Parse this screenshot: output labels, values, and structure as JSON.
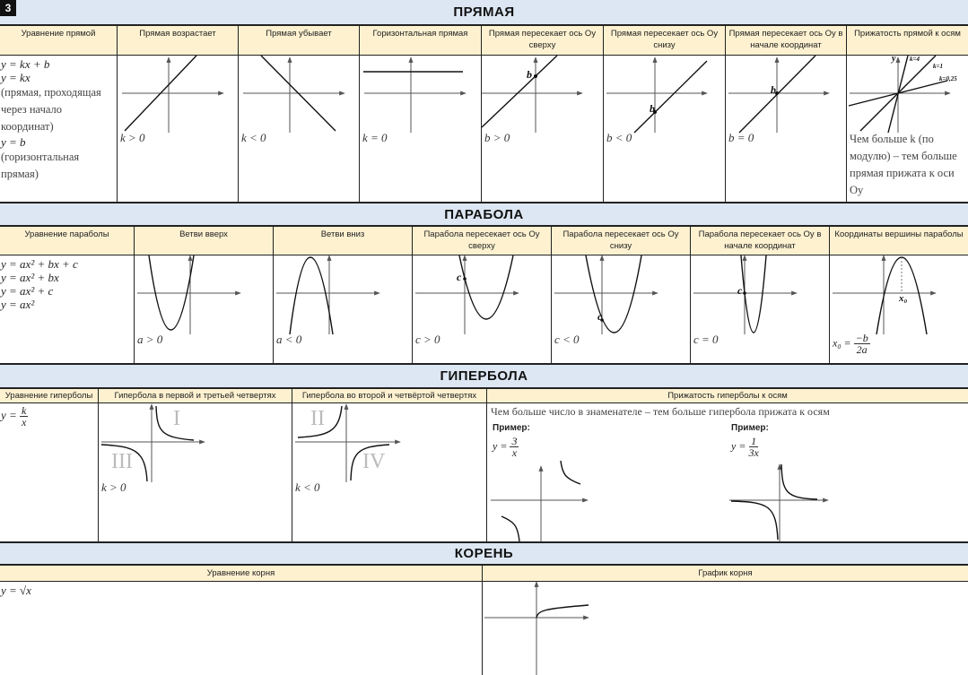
{
  "page_number": "3",
  "line": {
    "title": "ПРЯМАЯ",
    "headers": [
      "Уравнение прямой",
      "Прямая возрастает",
      "Прямая убывает",
      "Горизонтальная прямая",
      "Прямая пересекает ось Oy сверху",
      "Прямая пересекает ось Oy снизу",
      "Прямая пересекает ось Oy в начале координат",
      "Прижатость прямой к осям"
    ],
    "equations": [
      "y = kx + b",
      "y = kx",
      "(прямая, проходящая",
      "через начало",
      "координат)",
      "y = b",
      "(горизонтальная",
      "прямая)"
    ],
    "captions": [
      "k > 0",
      "k < 0",
      "k = 0",
      "b > 0",
      "b < 0",
      "b = 0"
    ],
    "point_label": "b",
    "slope_labels": [
      "y",
      "k=4",
      "k=1",
      "k=0,25"
    ],
    "steepness_note": "Чем больше k (по модулю) – тем больше прямая прижата к оси Oy"
  },
  "parabola": {
    "title": "ПАРАБОЛА",
    "headers": [
      "Уравнение параболы",
      "Ветви вверх",
      "Ветви вниз",
      "Парабола пересекает ось Oy сверху",
      "Парабола пересекает ось Oy снизу",
      "Парабола пересекает ось Oy в начале координат",
      "Координаты вершины параболы"
    ],
    "equations": [
      "y = ax² + bx + c",
      "y = ax² + bx",
      "y = ax² + c",
      "y = ax²"
    ],
    "captions": [
      "a > 0",
      "a < 0",
      "c > 0",
      "c < 0",
      "c = 0"
    ],
    "point_label": "c",
    "vertex_label": "x₀",
    "vertex_formula": {
      "lhs": "x₀ =",
      "num": "−b",
      "den": "2a"
    }
  },
  "hyperbola": {
    "title": "ГИПЕРБОЛА",
    "headers": [
      "Уравнение гиперболы",
      "Гипербола в первой и третьей четвертях",
      "Гипербола во второй и четвёртой четвертях",
      "Прижатость гиперболы к осям"
    ],
    "equation": {
      "lhs": "y =",
      "num": "k",
      "den": "x"
    },
    "captions": [
      "k > 0",
      "k < 0"
    ],
    "quadrants": [
      "I",
      "III",
      "II",
      "IV"
    ],
    "note": "Чем больше число в знаменателе – тем больше гипербола прижата к осям",
    "examples": [
      {
        "label": "Пример:",
        "lhs": "y =",
        "num": "3",
        "den": "x"
      },
      {
        "label": "Пример:",
        "lhs": "y =",
        "num": "1",
        "den": "3x"
      }
    ]
  },
  "root": {
    "title": "КОРЕНЬ",
    "headers": [
      "Уравнение корня",
      "График корня"
    ],
    "equation": "y = √x"
  }
}
